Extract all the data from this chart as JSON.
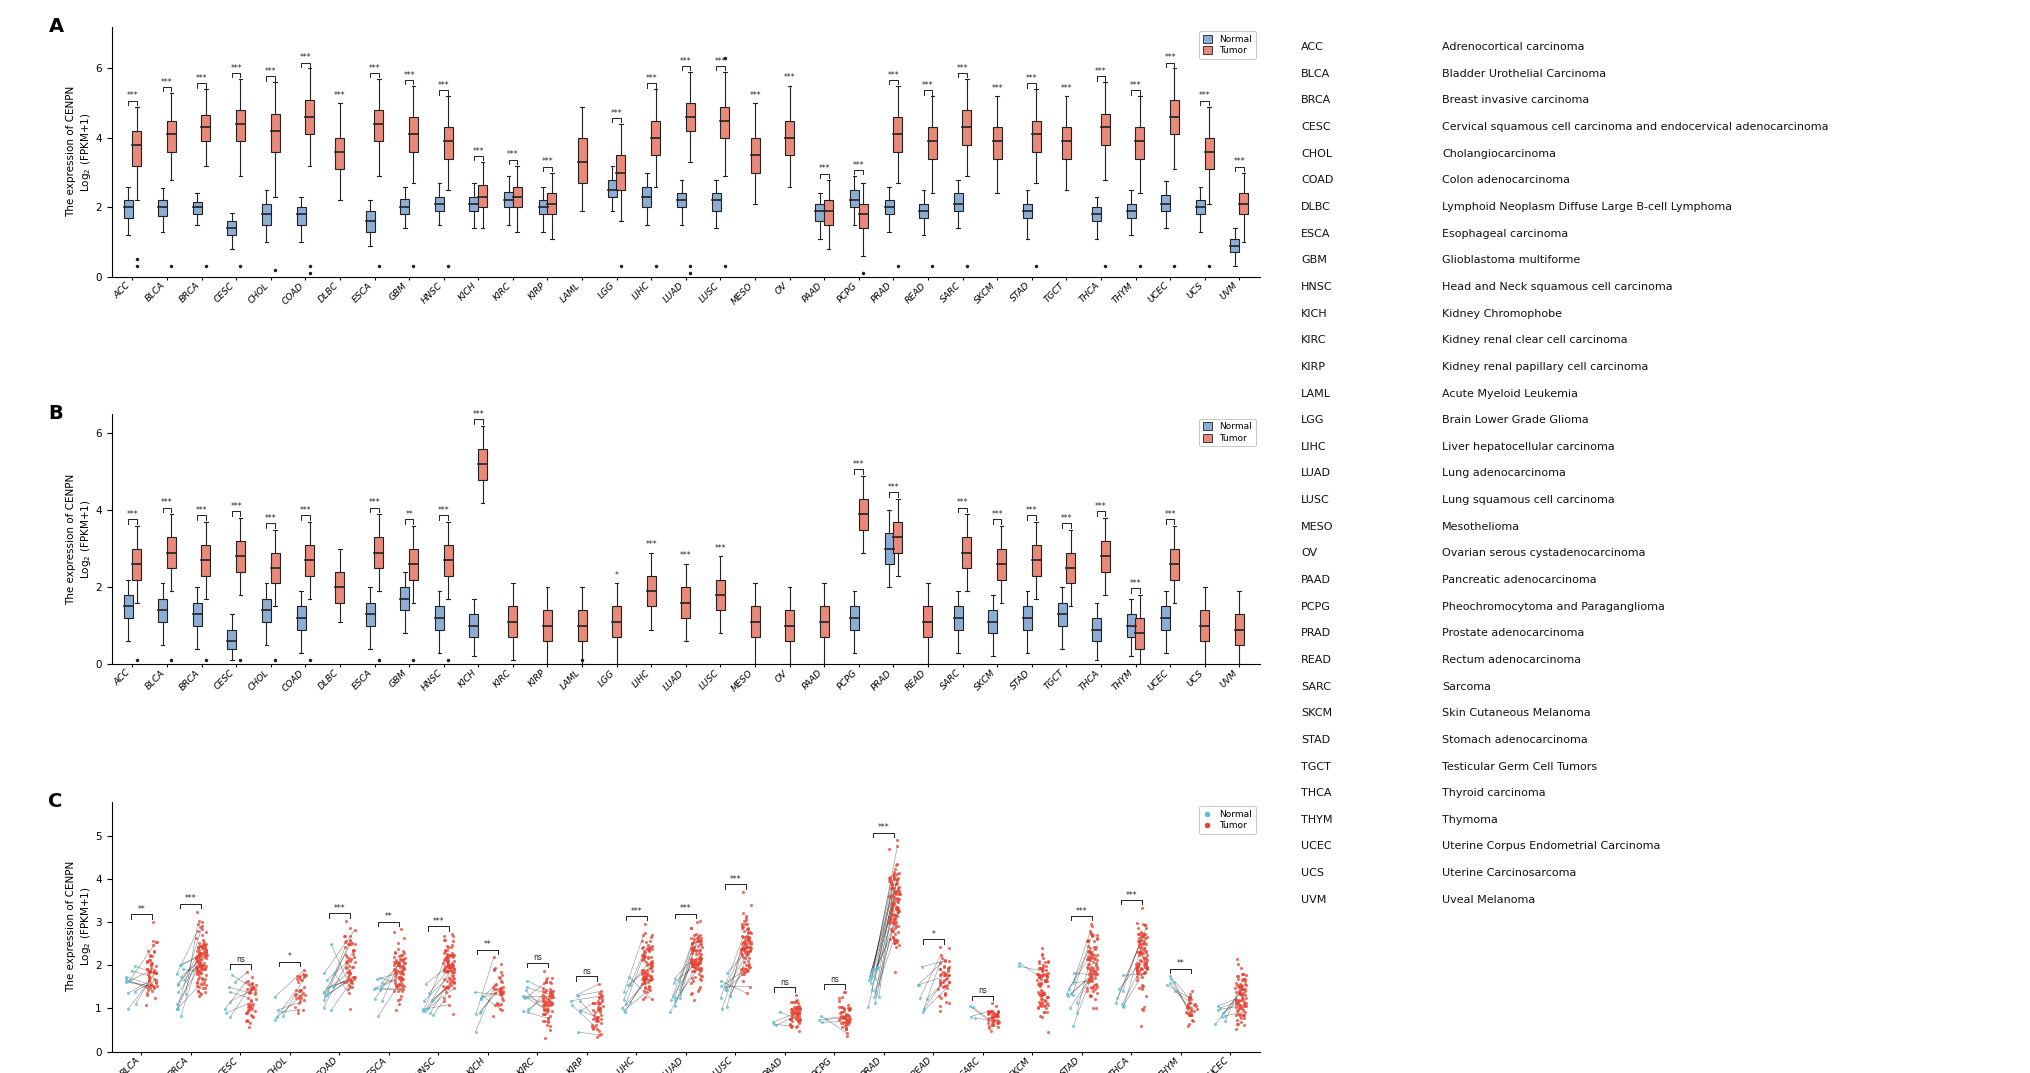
{
  "panel_A_categories": [
    "ACC",
    "BLCA",
    "BRCA",
    "CESC",
    "CHOL",
    "COAD",
    "DLBC",
    "ESCA",
    "GBM",
    "HNSC",
    "KICH",
    "KIRC",
    "KIRP",
    "LAML",
    "LGG",
    "LIHC",
    "LUAD",
    "LUSC",
    "MESO",
    "OV",
    "PAAD",
    "PCPG",
    "PRAD",
    "READ",
    "SARC",
    "SKCM",
    "STAD",
    "TGCT",
    "THCA",
    "THYM",
    "UCEC",
    "UCS",
    "UVM"
  ],
  "panel_B_categories": [
    "ACC",
    "BLCA",
    "BRCA",
    "CESC",
    "CHOL",
    "COAD",
    "DLBC",
    "ESCA",
    "GBM",
    "HNSC",
    "KICH",
    "KIRC",
    "KIRP",
    "LAML",
    "LGG",
    "LIHC",
    "LUAD",
    "LUSC",
    "MESO",
    "OV",
    "PAAD",
    "PCPG",
    "PRAD",
    "READ",
    "SARC",
    "SKCM",
    "STAD",
    "TGCT",
    "THCA",
    "THYM",
    "UCEC",
    "UCS",
    "UVM"
  ],
  "panel_C_categories": [
    "BLCA",
    "BRCA",
    "CESC",
    "CHOL",
    "COAD",
    "ESCA",
    "HNSC",
    "KICH",
    "KIRC",
    "KIRP",
    "LIHC",
    "LUAD",
    "LUSC",
    "PAAD",
    "PCPG",
    "PRAD",
    "READ",
    "SARC",
    "SKCM",
    "STAD",
    "THCA",
    "THYM",
    "UCEC"
  ],
  "normal_color": "#8daed4",
  "tumor_color": "#e8897a",
  "normal_color_C": "#5bbfd4",
  "tumor_color_C": "#e84030",
  "background_color": "#ffffff",
  "ylabel_A": "The expression of CENPN\nLog$_2$ (FPKM+1)",
  "ylabel_B": "The expression of CENPN\nLog$_2$ (FPKM+1)",
  "ylabel_C": "The expression of CENPN\nLog$_2$ (FPKM+1)",
  "panel_A_sig": {
    "ACC": "***",
    "BLCA": "***",
    "BRCA": "***",
    "CESC": "***",
    "CHOL": "***",
    "COAD": "***",
    "DLBC": "***",
    "ESCA": "***",
    "GBM": "***",
    "HNSC": "***",
    "KICH": "***",
    "KIRC": "***",
    "KIRP": "***",
    "LAML": "",
    "LGG": "***",
    "LIHC": "***",
    "LUAD": "***",
    "LUSC": "***",
    "MESO": "***",
    "OV": "***",
    "PAAD": "***",
    "PCPG": "***",
    "PRAD": "***",
    "READ": "***",
    "SARC": "***",
    "SKCM": "***",
    "STAD": "***",
    "TGCT": "***",
    "THCA": "***",
    "THYM": "***",
    "UCEC": "***",
    "UCS": "***",
    "UVM": "***"
  },
  "panel_B_sig": {
    "ACC": "***",
    "BLCA": "***",
    "BRCA": "***",
    "CESC": "***",
    "CHOL": "***",
    "COAD": "***",
    "DLBC": "",
    "ESCA": "***",
    "GBM": "**",
    "HNSC": "***",
    "KICH": "***",
    "KIRC": "",
    "KIRP": "",
    "LAML": "",
    "LGG": "*",
    "LIHC": "***",
    "LUAD": "***",
    "LUSC": "***",
    "MESO": "",
    "OV": "",
    "PAAD": "",
    "PCPG": "***",
    "PRAD": "***",
    "READ": "",
    "SARC": "***",
    "SKCM": "***",
    "STAD": "***",
    "TGCT": "***",
    "THCA": "***",
    "THYM": "***",
    "UCEC": "***",
    "UCS": "",
    "UVM": ""
  },
  "panel_C_sig": {
    "BLCA": "**",
    "BRCA": "***",
    "CESC": "ns",
    "CHOL": "*",
    "COAD": "***",
    "ESCA": "**",
    "HNSC": "***",
    "KICH": "**",
    "KIRC": "ns",
    "KIRP": "ns",
    "LIHC": "***",
    "LUAD": "***",
    "LUSC": "***",
    "PAAD": "ns",
    "PCPG": "ns",
    "PRAD": "***",
    "READ": "*",
    "SARC": "ns",
    "SKCM": "",
    "STAD": "***",
    "THCA": "***",
    "THYM": "**",
    "UCEC": ""
  },
  "panel_A_normal_only": [],
  "panel_A_tumor_only": [
    "DLBC",
    "LAML",
    "MESO",
    "OV",
    "SKCM",
    "TGCT"
  ],
  "panel_B_tumor_only": [
    "DLBC",
    "KIRC",
    "KIRP",
    "LAML",
    "LGG",
    "LIHC",
    "LUAD",
    "LUSC",
    "MESO",
    "OV",
    "PAAD",
    "READ",
    "UCS",
    "UVM"
  ],
  "abbreviations": {
    "ACC": "Adrenocortical carcinoma",
    "BLCA": "Bladder Urothelial Carcinoma",
    "BRCA": "Breast invasive carcinoma",
    "CESC": "Cervical squamous cell carcinoma and endocervical adenocarcinoma",
    "CHOL": "Cholangiocarcinoma",
    "COAD": "Colon adenocarcinoma",
    "DLBC": "Lymphoid Neoplasm Diffuse Large B-cell Lymphoma",
    "ESCA": "Esophageal carcinoma",
    "GBM": "Glioblastoma multiforme",
    "HNSC": "Head and Neck squamous cell carcinoma",
    "KICH": "Kidney Chromophobe",
    "KIRC": "Kidney renal clear cell carcinoma",
    "KIRP": "Kidney renal papillary cell carcinoma",
    "LAML": "Acute Myeloid Leukemia",
    "LGG": "Brain Lower Grade Glioma",
    "LIHC": "Liver hepatocellular carcinoma",
    "LUAD": "Lung adenocarcinoma",
    "LUSC": "Lung squamous cell carcinoma",
    "MESO": "Mesothelioma",
    "OV": "Ovarian serous cystadenocarcinoma",
    "PAAD": "Pancreatic adenocarcinoma",
    "PCPG": "Pheochromocytoma and Paraganglioma",
    "PRAD": "Prostate adenocarcinoma",
    "READ": "Rectum adenocarcinoma",
    "SARC": "Sarcoma",
    "SKCM": "Skin Cutaneous Melanoma",
    "STAD": "Stomach adenocarcinoma",
    "TGCT": "Testicular Germ Cell Tumors",
    "THCA": "Thyroid carcinoma",
    "THYM": "Thymoma",
    "UCEC": "Uterine Corpus Endometrial Carcinoma",
    "UCS": "Uterine Carcinosarcoma",
    "UVM": "Uveal Melanoma"
  }
}
